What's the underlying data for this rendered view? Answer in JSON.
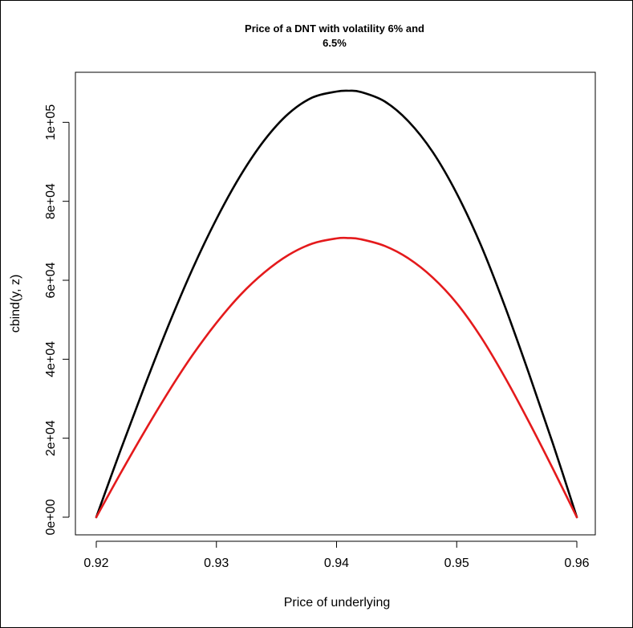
{
  "chart_data": {
    "type": "line",
    "title": "Price of a DNT with volatility 6% and 6.5%",
    "title_lines": [
      "Price of a DNT with volatility 6% and",
      "6.5%"
    ],
    "xlabel": "Price of underlying",
    "ylabel": "cbind(y, z)",
    "xlim": [
      0.92,
      0.96
    ],
    "ylim": [
      0,
      108000
    ],
    "x_ticks": [
      0.92,
      0.93,
      0.94,
      0.95,
      0.96
    ],
    "x_tick_labels": [
      "0.92",
      "0.93",
      "0.94",
      "0.95",
      "0.96"
    ],
    "y_ticks": [
      0,
      20000,
      40000,
      60000,
      80000,
      100000
    ],
    "y_tick_labels": [
      "0e+00",
      "2e+04",
      "4e+04",
      "6e+04",
      "8e+04",
      "1e+05"
    ],
    "grid": false,
    "legend": "none",
    "series": [
      {
        "color": "#000000",
        "x": [
          0.92,
          0.922,
          0.924,
          0.926,
          0.928,
          0.93,
          0.932,
          0.934,
          0.936,
          0.938,
          0.94,
          0.941,
          0.942,
          0.944,
          0.946,
          0.948,
          0.95,
          0.952,
          0.954,
          0.956,
          0.958,
          0.96
        ],
        "values": [
          0,
          16800,
          33000,
          48500,
          62800,
          75500,
          86500,
          95500,
          102200,
          106300,
          107800,
          108000,
          107700,
          105300,
          100200,
          92500,
          82000,
          69000,
          53500,
          36500,
          18700,
          0
        ]
      },
      {
        "color": "#e41a1c",
        "x": [
          0.92,
          0.922,
          0.924,
          0.926,
          0.928,
          0.93,
          0.932,
          0.934,
          0.936,
          0.938,
          0.94,
          0.941,
          0.942,
          0.944,
          0.946,
          0.948,
          0.95,
          0.952,
          0.954,
          0.956,
          0.958,
          0.96
        ],
        "values": [
          0,
          11000,
          21600,
          31700,
          41000,
          49200,
          56300,
          62000,
          66400,
          69300,
          70600,
          70700,
          70400,
          68700,
          65500,
          60700,
          54200,
          45700,
          35500,
          24200,
          12300,
          0
        ]
      }
    ]
  }
}
